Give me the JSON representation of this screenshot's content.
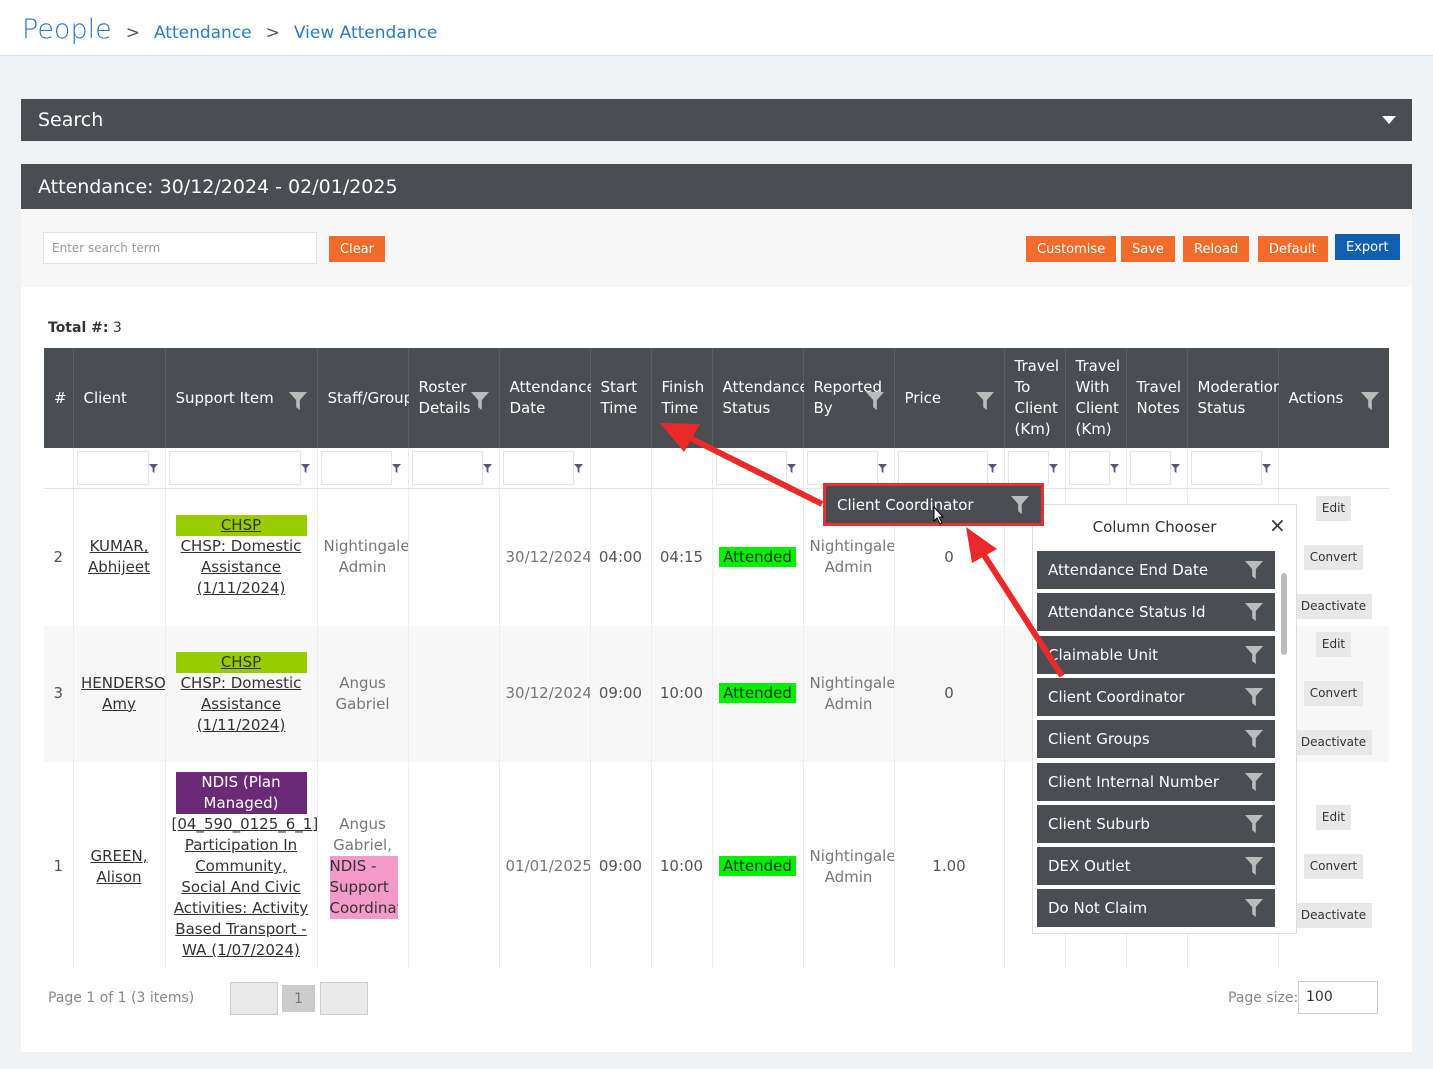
{
  "breadcrumb": [
    "People",
    "Attendance",
    "View Attendance"
  ],
  "search_panel": {
    "title": "Search"
  },
  "attendance_panel": {
    "title": "Attendance: 30/12/2024 - 02/01/2025"
  },
  "toolbar": {
    "search_placeholder": "Enter search term",
    "clear": "Clear",
    "buttons": [
      "Customise",
      "Save",
      "Reload",
      "Default"
    ],
    "export": "Export"
  },
  "total": {
    "label": "Total #:",
    "value": "3"
  },
  "table": {
    "columns": [
      "#",
      "Client",
      "Support Item",
      "Staff/Group",
      "Roster Details",
      "Attendance Date",
      "Start Time",
      "Finish Time",
      "Attendance Status",
      "Reported By",
      "Price",
      "Travel To Client (Km)",
      "Travel With Client (Km)",
      "Travel Notes",
      "Moderation Status",
      "Actions"
    ],
    "actions": [
      "Edit",
      "Convert",
      "Deactivate"
    ],
    "rows": [
      {
        "num": "2",
        "client": "KUMAR, Abhijeet",
        "tag": "CHSP",
        "tag_color": "#99cc00",
        "item": "CHSP: Domestic Assistance (1/11/2024)",
        "staff": "Nightingale Admin",
        "date": "30/12/2024",
        "start": "04:00",
        "finish": "04:15",
        "status": "Attended",
        "reported": "Nightingale Admin",
        "price": "0"
      },
      {
        "num": "3",
        "client": "HENDERSON, Amy",
        "tag": "CHSP",
        "tag_color": "#99cc00",
        "item": "CHSP: Domestic Assistance (1/11/2024)",
        "staff": "Angus Gabriel",
        "date": "30/12/2024",
        "start": "09:00",
        "finish": "10:00",
        "status": "Attended",
        "reported": "Nightingale Admin",
        "price": "0"
      },
      {
        "num": "1",
        "client": "GREEN, Alison",
        "tag": "NDIS (Plan Managed)",
        "tag_color": "#6b2a75",
        "item": "[04_590_0125_6_1] Participation In Community, Social And Civic Activities: Activity Based Transport - WA (1/07/2024)",
        "staff": "Angus Gabriel,",
        "staff_tag": "NDIS - Support Coordination",
        "date": "01/01/2025",
        "start": "09:00",
        "finish": "10:00",
        "status": "Attended",
        "reported": "Nightingale Admin",
        "price": "1.00"
      }
    ]
  },
  "drag_header": "Client Coordinator",
  "column_chooser": {
    "title": "Column Chooser",
    "items": [
      "Attendance End Date",
      "Attendance Status Id",
      "Claimable Unit",
      "Client Coordinator",
      "Client Groups",
      "Client Internal Number",
      "Client Suburb",
      "DEX Outlet",
      "Do Not Claim"
    ]
  },
  "pager": {
    "info": "Page 1 of 1 (3 items)",
    "page": "1",
    "size_label": "Page size:",
    "size": "100"
  }
}
